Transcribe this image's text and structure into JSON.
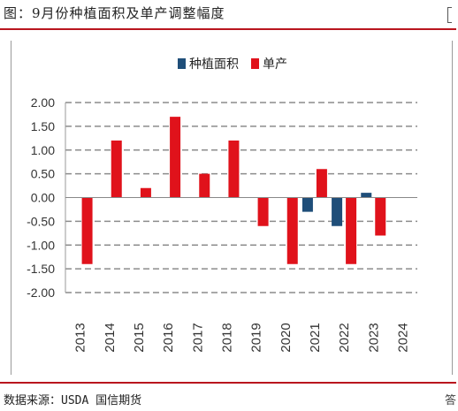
{
  "header": {
    "title": "图：9月份种植面积及单产调整幅度"
  },
  "footer": {
    "source": "数据来源：USDA 国信期货",
    "edge_glyph": "答"
  },
  "chart_data": {
    "type": "bar",
    "title": "",
    "xlabel": "",
    "ylabel": "",
    "ylim": [
      -2.0,
      2.0
    ],
    "yticks": [
      "2.00",
      "1.50",
      "1.00",
      "0.50",
      "0.00",
      "-0.50",
      "-1.00",
      "-1.50",
      "-2.00"
    ],
    "categories": [
      "2013",
      "2014",
      "2015",
      "2016",
      "2017",
      "2018",
      "2019",
      "2020",
      "2021",
      "2022",
      "2023",
      "2024"
    ],
    "grid": true,
    "legend_position": "top-center",
    "series": [
      {
        "name": "种植面积",
        "color": "#1f4e79",
        "values": [
          0,
          0,
          0,
          0,
          0,
          0,
          0,
          0,
          -0.3,
          -0.6,
          0.1,
          0
        ]
      },
      {
        "name": "单产",
        "color": "#e0121b",
        "values": [
          -1.4,
          1.2,
          0.2,
          1.7,
          0.5,
          1.2,
          -0.6,
          -1.4,
          0.6,
          -1.4,
          -0.8,
          0
        ]
      }
    ]
  }
}
